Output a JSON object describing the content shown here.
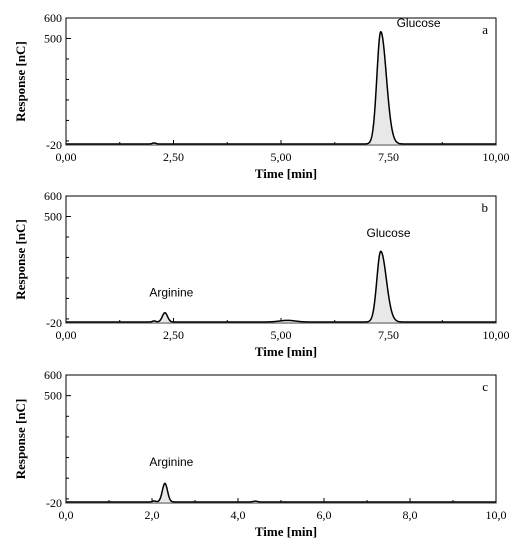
{
  "chart_data": [
    {
      "type": "line",
      "panel_label": "a",
      "xlabel": "Time [min]",
      "ylabel": "Response [nC]",
      "xlim": [
        0,
        10
      ],
      "ylim": [
        -20,
        600
      ],
      "x_ticks": [
        "0,00",
        "2,50",
        "5,00",
        "7,50",
        "10,00"
      ],
      "y_ticks": [
        "-20",
        "500",
        "600"
      ],
      "baseline": -15,
      "peaks": [
        {
          "time": 2.05,
          "height": 5,
          "width": 0.04
        },
        {
          "time": 7.32,
          "height": 548,
          "width": 0.09,
          "tail": 0.13
        }
      ],
      "annotations": [
        {
          "text": "Glucose",
          "x": 8.2,
          "y": 555
        }
      ]
    },
    {
      "type": "line",
      "panel_label": "b",
      "xlabel": "Time [min]",
      "ylabel": "Response [nC]",
      "xlim": [
        0,
        10
      ],
      "ylim": [
        -20,
        600
      ],
      "x_ticks": [
        "0,00",
        "2,50",
        "5,00",
        "7,50",
        "10,00"
      ],
      "y_ticks": [
        "-20",
        "500",
        "600"
      ],
      "baseline": -15,
      "peaks": [
        {
          "time": 2.05,
          "height": 5,
          "width": 0.04
        },
        {
          "time": 2.3,
          "height": 45,
          "width": 0.06
        },
        {
          "time": 5.15,
          "height": 8,
          "width": 0.18
        },
        {
          "time": 7.32,
          "height": 345,
          "width": 0.09,
          "tail": 0.13
        }
      ],
      "annotations": [
        {
          "text": "Arginine",
          "x": 2.45,
          "y": 110
        },
        {
          "text": "Glucose",
          "x": 7.5,
          "y": 400
        }
      ]
    },
    {
      "type": "line",
      "panel_label": "c",
      "xlabel": "Time [min]",
      "ylabel": "Response [nC]",
      "xlim": [
        0,
        10
      ],
      "ylim": [
        -20,
        600
      ],
      "x_ticks": [
        "0,0",
        "2,0",
        "4,0",
        "6,0",
        "8,0",
        "10,0"
      ],
      "y_ticks": [
        "-20",
        "500",
        "600"
      ],
      "baseline": -15,
      "peaks": [
        {
          "time": 2.05,
          "height": 5,
          "width": 0.04
        },
        {
          "time": 2.3,
          "height": 90,
          "width": 0.06
        },
        {
          "time": 4.4,
          "height": 4,
          "width": 0.05
        }
      ],
      "annotations": [
        {
          "text": "Arginine",
          "x": 2.45,
          "y": 160
        }
      ]
    }
  ]
}
